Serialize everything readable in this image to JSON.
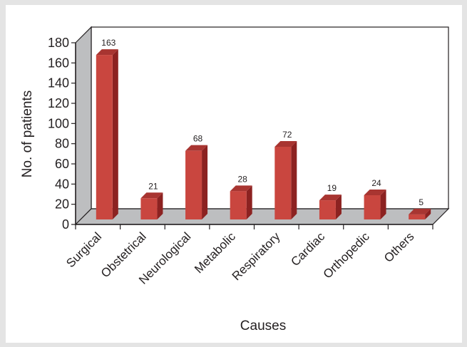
{
  "chart_data": {
    "type": "bar",
    "categories": [
      "Surgical",
      "Obstetrical",
      "Neurological",
      "Metabolic",
      "Respiratory",
      "Cardiac",
      "Orthopedic",
      "Others"
    ],
    "values": [
      163,
      21,
      68,
      28,
      72,
      19,
      24,
      5
    ],
    "data_labels": [
      "163",
      "21",
      "68",
      "28",
      "72",
      "19",
      "24",
      "5"
    ],
    "title": "",
    "xlabel": "Causes",
    "ylabel": "No. of patients",
    "ylim": [
      0,
      180
    ],
    "yticks": [
      "0",
      "20",
      "40",
      "60",
      "80",
      "100",
      "120",
      "140",
      "160",
      "180"
    ],
    "grid": false,
    "legend": "none",
    "style": "3d",
    "colors": {
      "bar_front": "#c9463f",
      "bar_side": "#8c2221",
      "bar_top": "#a83531",
      "back_wall": "#ffffff",
      "side_wall": "#bdbec0",
      "floor": "#bdbec0",
      "background": "#e4e4e4",
      "axis": "#231f20"
    }
  }
}
